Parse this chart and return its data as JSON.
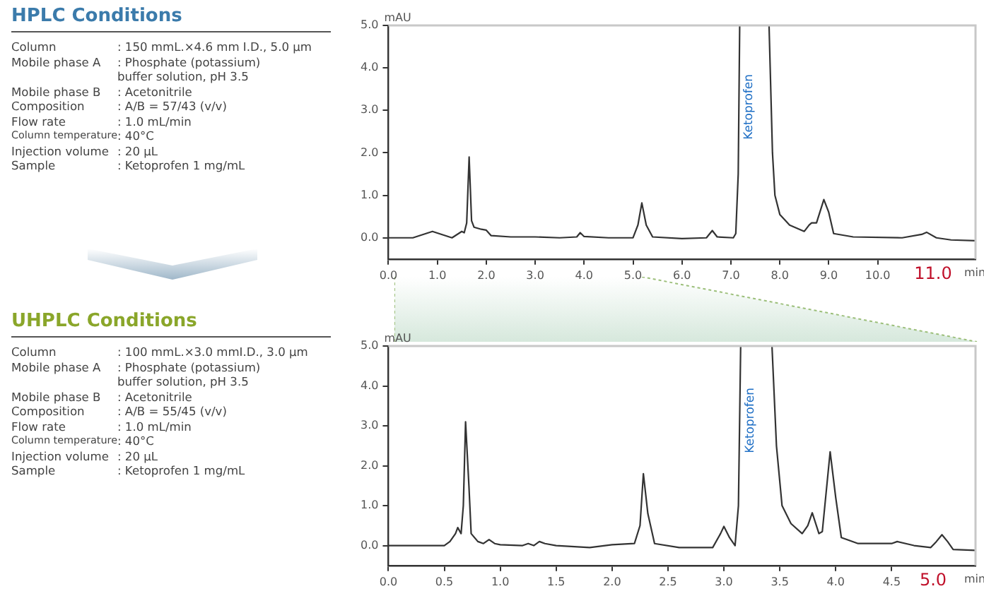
{
  "chart_data": [
    {
      "type": "other",
      "title": "HPLC Conditions",
      "annotations": [
        "Column",
        ": 150 mmL.×4.6 mm I.D., 5.0 μm",
        "Mobile phase A",
        ": Phosphate (potassium)\nbuffer solution, pH 3.5",
        "Mobile phase B",
        ": Acetonitrile",
        "Composition",
        ": A/B = 57/43 (v/v)",
        "Flow rate",
        ": 1.0 mL/min",
        "Column temperature",
        ": 40°C",
        "Injection volume",
        ": 20 μL",
        "Sample",
        ": Ketoprofen 1 mg/mL"
      ]
    },
    {
      "type": "line",
      "xlabel": "min",
      "ylabel": "mAU",
      "xlim": [
        0,
        12
      ],
      "ylim": [
        -0.5,
        5.0
      ],
      "xticks": [
        {
          "value": 0,
          "label": "0.0"
        },
        {
          "value": 1,
          "label": "1.0"
        },
        {
          "value": 2,
          "label": "2.0"
        },
        {
          "value": 3,
          "label": "3.0"
        },
        {
          "value": 4,
          "label": "4.0"
        },
        {
          "value": 5,
          "label": "5.0"
        },
        {
          "value": 6,
          "label": "6.0"
        },
        {
          "value": 7,
          "label": "7.0"
        },
        {
          "value": 8,
          "label": "8.0"
        },
        {
          "value": 9,
          "label": "9.0"
        },
        {
          "value": 10,
          "label": "10.0"
        }
      ],
      "yticks": [
        {
          "value": 0,
          "label": "0.0"
        },
        {
          "value": 1,
          "label": "1.0"
        },
        {
          "value": 2,
          "label": "2.0"
        },
        {
          "value": 3,
          "label": "3.0"
        },
        {
          "value": 4,
          "label": "4.0"
        },
        {
          "value": 5,
          "label": "5.0"
        }
      ],
      "grid": false,
      "marker": "none",
      "line_style": "solid",
      "annotations": [
        "Ketoprofen",
        "11.0"
      ],
      "series": [
        {
          "color": "#333333",
          "x": [
            0,
            0.5,
            0.9,
            1.3,
            1.5,
            1.55,
            1.6,
            1.65,
            1.7,
            1.75,
            1.9,
            2.0,
            2.1,
            2.5,
            3.0,
            3.5,
            3.85,
            3.92,
            4.0,
            4.5,
            5.0,
            5.1,
            5.18,
            5.27,
            5.4,
            6.0,
            6.5,
            6.62,
            6.72,
            7.05,
            7.1,
            7.15,
            7.18,
            7.78,
            7.85,
            7.9,
            8.0,
            8.2,
            8.5,
            8.6,
            8.65,
            8.75,
            8.9,
            9.0,
            9.1,
            9.5,
            10.5,
            10.9,
            11.0,
            11.2,
            11.5,
            12.0
          ],
          "values": [
            0,
            0,
            0.15,
            0,
            0.15,
            0.12,
            0.35,
            1.9,
            0.4,
            0.25,
            0.2,
            0.18,
            0.05,
            0.02,
            0.02,
            0,
            0.02,
            0.12,
            0.03,
            0,
            0,
            0.3,
            0.82,
            0.3,
            0.02,
            -0.02,
            0,
            0.17,
            0.02,
            0,
            0.1,
            1.5,
            5.0,
            5.0,
            2.0,
            1.0,
            0.55,
            0.3,
            0.15,
            0.3,
            0.35,
            0.35,
            0.9,
            0.6,
            0.1,
            0.02,
            0,
            0.08,
            0.13,
            0,
            -0.05,
            -0.07
          ]
        }
      ]
    },
    {
      "type": "other",
      "title": "UHPLC Conditions",
      "annotations": [
        "Column",
        ": 100 mmL.×3.0 mmI.D., 3.0 μm",
        "Mobile phase A",
        ": Phosphate (potassium)\nbuffer solution, pH 3.5",
        "Mobile phase B",
        ": Acetonitrile",
        "Composition",
        ": A/B = 55/45 (v/v)",
        "Flow rate",
        ": 1.0 mL/min",
        "Column temperature",
        ": 40°C",
        "Injection volume",
        ": 20 μL",
        "Sample",
        ": Ketoprofen 1 mg/mL"
      ]
    },
    {
      "type": "line",
      "xlabel": "min",
      "ylabel": "mAU",
      "xlim": [
        0,
        5.25
      ],
      "ylim": [
        -0.5,
        5.0
      ],
      "xticks": [
        {
          "value": 0,
          "label": "0.0"
        },
        0.5,
        {
          "value": 1,
          "label": "1.0"
        },
        1.5,
        {
          "value": 2,
          "label": "2.0"
        },
        2.5,
        {
          "value": 3,
          "label": "3.0"
        },
        3.5,
        {
          "value": 4,
          "label": "4.0"
        },
        4.5
      ],
      "yticks": [
        {
          "value": 0,
          "label": "0.0"
        },
        {
          "value": 1,
          "label": "1.0"
        },
        {
          "value": 2,
          "label": "2.0"
        },
        {
          "value": 3,
          "label": "3.0"
        },
        {
          "value": 4,
          "label": "4.0"
        },
        {
          "value": 5,
          "label": "5.0"
        }
      ],
      "grid": false,
      "marker": "none",
      "line_style": "solid",
      "annotations": [
        "Ketoprofen",
        "5.0"
      ],
      "series": [
        {
          "color": "#333333",
          "x": [
            0,
            0.5,
            0.55,
            0.6,
            0.62,
            0.65,
            0.67,
            0.69,
            0.72,
            0.74,
            0.8,
            0.85,
            0.9,
            0.95,
            1.0,
            1.2,
            1.25,
            1.3,
            1.35,
            1.4,
            1.5,
            1.8,
            2.0,
            2.2,
            2.25,
            2.28,
            2.32,
            2.38,
            2.6,
            2.9,
            2.97,
            3.0,
            3.05,
            3.1,
            3.13,
            3.15,
            3.43,
            3.47,
            3.52,
            3.6,
            3.7,
            3.75,
            3.79,
            3.85,
            3.88,
            3.95,
            4.0,
            4.05,
            4.2,
            4.5,
            4.55,
            4.7,
            4.85,
            4.9,
            4.95,
            5.0,
            5.05,
            5.25
          ],
          "values": [
            0,
            0,
            0.1,
            0.3,
            0.45,
            0.3,
            1.0,
            3.1,
            1.5,
            0.3,
            0.1,
            0.05,
            0.15,
            0.05,
            0.02,
            0,
            0.05,
            0,
            0.1,
            0.05,
            0,
            -0.05,
            0.02,
            0.05,
            0.5,
            1.8,
            0.8,
            0.05,
            -0.05,
            -0.05,
            0.3,
            0.48,
            0.2,
            0,
            1.0,
            5.0,
            5.0,
            2.5,
            1.0,
            0.55,
            0.3,
            0.5,
            0.82,
            0.3,
            0.35,
            2.35,
            1.2,
            0.2,
            0.05,
            0.05,
            0.1,
            0,
            -0.05,
            0.1,
            0.27,
            0.1,
            -0.1,
            -0.12
          ]
        }
      ]
    }
  ]
}
